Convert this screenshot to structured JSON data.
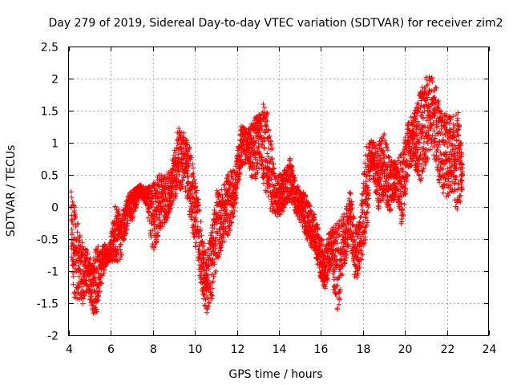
{
  "chart_data": {
    "type": "scatter",
    "title": "Day 279 of 2019, Sidereal Day-to-day VTEC variation (SDTVAR) for receiver zim2",
    "xlabel": "GPS time / hours",
    "ylabel": "SDTVAR / TECUs",
    "xlim": [
      4,
      24
    ],
    "ylim": [
      -2,
      2.5
    ],
    "xticks": [
      4,
      6,
      8,
      10,
      12,
      14,
      16,
      18,
      20,
      22,
      24
    ],
    "yticks": [
      -2,
      -1.5,
      -1,
      -0.5,
      0,
      0.5,
      1,
      1.5,
      2,
      2.5
    ],
    "ytick_labels": [
      "-2",
      "-1.5",
      "-1",
      "-0.5",
      "0",
      "0.5",
      "1",
      "1.5",
      "2",
      "2.5"
    ],
    "grid": true,
    "marker": "+",
    "marker_color": "#ff0000",
    "series": [
      {
        "name": "SDTVAR",
        "envelope": [
          {
            "x": 4.1,
            "lo": -0.7,
            "hi": 0.3
          },
          {
            "x": 4.25,
            "lo": -1.55,
            "hi": 0.1
          },
          {
            "x": 4.45,
            "lo": -1.5,
            "hi": -0.2
          },
          {
            "x": 4.7,
            "lo": -1.55,
            "hi": -0.6
          },
          {
            "x": 4.9,
            "lo": -1.3,
            "hi": -0.6
          },
          {
            "x": 5.1,
            "lo": -1.65,
            "hi": -0.9
          },
          {
            "x": 5.3,
            "lo": -1.75,
            "hi": -0.55
          },
          {
            "x": 5.5,
            "lo": -1.3,
            "hi": -0.6
          },
          {
            "x": 5.7,
            "lo": -1.0,
            "hi": -0.55
          },
          {
            "x": 5.9,
            "lo": -0.85,
            "hi": -0.7
          },
          {
            "x": 6.2,
            "lo": -0.9,
            "hi": 0.1
          },
          {
            "x": 6.5,
            "lo": -0.85,
            "hi": -0.1
          },
          {
            "x": 6.8,
            "lo": -0.3,
            "hi": 0.2
          },
          {
            "x": 7.1,
            "lo": -0.2,
            "hi": 0.3
          },
          {
            "x": 7.4,
            "lo": 0.2,
            "hi": 0.35
          },
          {
            "x": 7.7,
            "lo": 0.0,
            "hi": 0.3
          },
          {
            "x": 8.0,
            "lo": -0.8,
            "hi": 0.4
          },
          {
            "x": 8.3,
            "lo": -0.4,
            "hi": 0.55
          },
          {
            "x": 8.6,
            "lo": -0.3,
            "hi": 0.5
          },
          {
            "x": 8.9,
            "lo": 0.0,
            "hi": 0.7
          },
          {
            "x": 9.2,
            "lo": 0.2,
            "hi": 1.3
          },
          {
            "x": 9.5,
            "lo": 0.3,
            "hi": 1.2
          },
          {
            "x": 9.75,
            "lo": -0.2,
            "hi": 1.0
          },
          {
            "x": 9.95,
            "lo": -0.6,
            "hi": 0.6
          },
          {
            "x": 10.15,
            "lo": -0.9,
            "hi": 0.2
          },
          {
            "x": 10.35,
            "lo": -1.4,
            "hi": -0.4
          },
          {
            "x": 10.55,
            "lo": -1.7,
            "hi": -0.7
          },
          {
            "x": 10.8,
            "lo": -1.5,
            "hi": -0.3
          },
          {
            "x": 11.05,
            "lo": -1.0,
            "hi": 0.3
          },
          {
            "x": 11.3,
            "lo": -0.6,
            "hi": 0.3
          },
          {
            "x": 11.6,
            "lo": -0.5,
            "hi": 0.6
          },
          {
            "x": 11.9,
            "lo": -0.1,
            "hi": 0.6
          },
          {
            "x": 12.2,
            "lo": 0.6,
            "hi": 1.3
          },
          {
            "x": 12.5,
            "lo": 0.7,
            "hi": 1.2
          },
          {
            "x": 12.8,
            "lo": 0.3,
            "hi": 1.4
          },
          {
            "x": 13.1,
            "lo": 0.6,
            "hi": 1.5
          },
          {
            "x": 13.35,
            "lo": 0.2,
            "hi": 1.75
          },
          {
            "x": 13.6,
            "lo": -0.1,
            "hi": 1.2
          },
          {
            "x": 13.9,
            "lo": -0.2,
            "hi": 0.5
          },
          {
            "x": 14.2,
            "lo": -0.1,
            "hi": 0.55
          },
          {
            "x": 14.5,
            "lo": 0.1,
            "hi": 0.85
          },
          {
            "x": 14.8,
            "lo": -0.1,
            "hi": 0.4
          },
          {
            "x": 15.1,
            "lo": -0.3,
            "hi": 0.3
          },
          {
            "x": 15.4,
            "lo": -0.6,
            "hi": 0.1
          },
          {
            "x": 15.7,
            "lo": -0.7,
            "hi": -0.1
          },
          {
            "x": 15.95,
            "lo": -1.15,
            "hi": -0.4
          },
          {
            "x": 16.2,
            "lo": -1.3,
            "hi": -0.6
          },
          {
            "x": 16.45,
            "lo": -1.0,
            "hi": -0.3
          },
          {
            "x": 16.8,
            "lo": -1.7,
            "hi": -0.2
          },
          {
            "x": 17.1,
            "lo": -1.0,
            "hi": -0.05
          },
          {
            "x": 17.4,
            "lo": -0.5,
            "hi": 0.3
          },
          {
            "x": 17.65,
            "lo": -1.25,
            "hi": -0.3
          },
          {
            "x": 17.9,
            "lo": -0.9,
            "hi": 0.0
          },
          {
            "x": 18.15,
            "lo": -0.6,
            "hi": 1.0
          },
          {
            "x": 18.4,
            "lo": 0.7,
            "hi": 1.05
          },
          {
            "x": 18.7,
            "lo": -0.1,
            "hi": 1.0
          },
          {
            "x": 19.0,
            "lo": 0.0,
            "hi": 1.2
          },
          {
            "x": 19.3,
            "lo": -0.1,
            "hi": 0.8
          },
          {
            "x": 19.6,
            "lo": 0.2,
            "hi": 0.7
          },
          {
            "x": 19.85,
            "lo": -0.4,
            "hi": 0.9
          },
          {
            "x": 20.1,
            "lo": 0.4,
            "hi": 1.3
          },
          {
            "x": 20.4,
            "lo": 0.7,
            "hi": 1.5
          },
          {
            "x": 20.7,
            "lo": 0.3,
            "hi": 1.8
          },
          {
            "x": 21.0,
            "lo": 0.6,
            "hi": 2.1
          },
          {
            "x": 21.25,
            "lo": 0.9,
            "hi": 2.1
          },
          {
            "x": 21.5,
            "lo": 0.5,
            "hi": 1.9
          },
          {
            "x": 21.75,
            "lo": 0.2,
            "hi": 1.5
          },
          {
            "x": 22.0,
            "lo": 0.1,
            "hi": 1.5
          },
          {
            "x": 22.25,
            "lo": 0.2,
            "hi": 1.45
          },
          {
            "x": 22.5,
            "lo": -0.2,
            "hi": 1.7
          },
          {
            "x": 22.75,
            "lo": 0.2,
            "hi": 0.7
          }
        ]
      }
    ]
  }
}
